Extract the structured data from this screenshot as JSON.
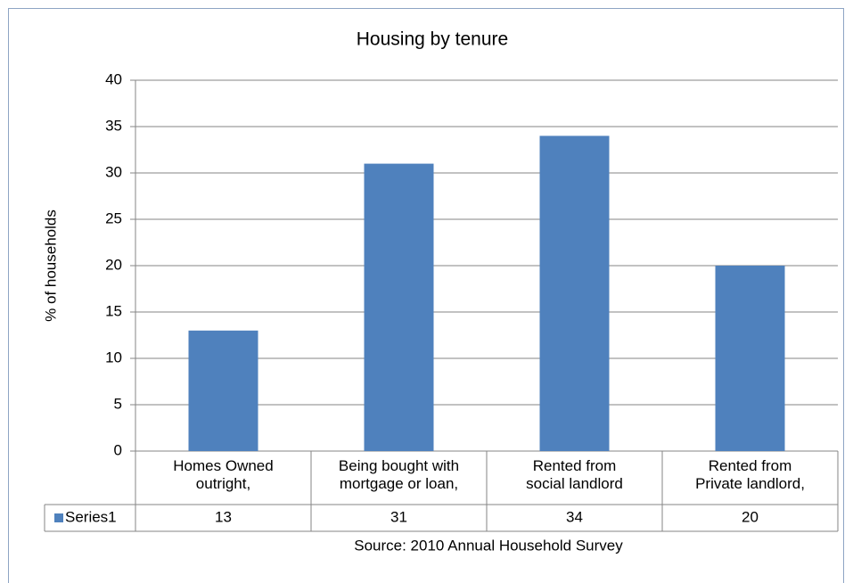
{
  "chart_data": {
    "type": "bar",
    "title": "Housing by tenure",
    "y_label": "% of households",
    "source": "Source: 2010 Annual Household Survey",
    "categories": [
      "Homes Owned\noutright,",
      "Being bought with\nmortgage or loan,",
      "Rented from\nsocial landlord",
      "Rented from\nPrivate landlord,"
    ],
    "series": [
      {
        "name": "Series1",
        "color": "#4f81bd",
        "values": [
          13,
          31,
          34,
          20
        ]
      }
    ],
    "ylim": [
      0,
      40
    ],
    "yticks": [
      0,
      5,
      10,
      15,
      20,
      25,
      30,
      35,
      40
    ],
    "grid": true,
    "data_table": true
  }
}
